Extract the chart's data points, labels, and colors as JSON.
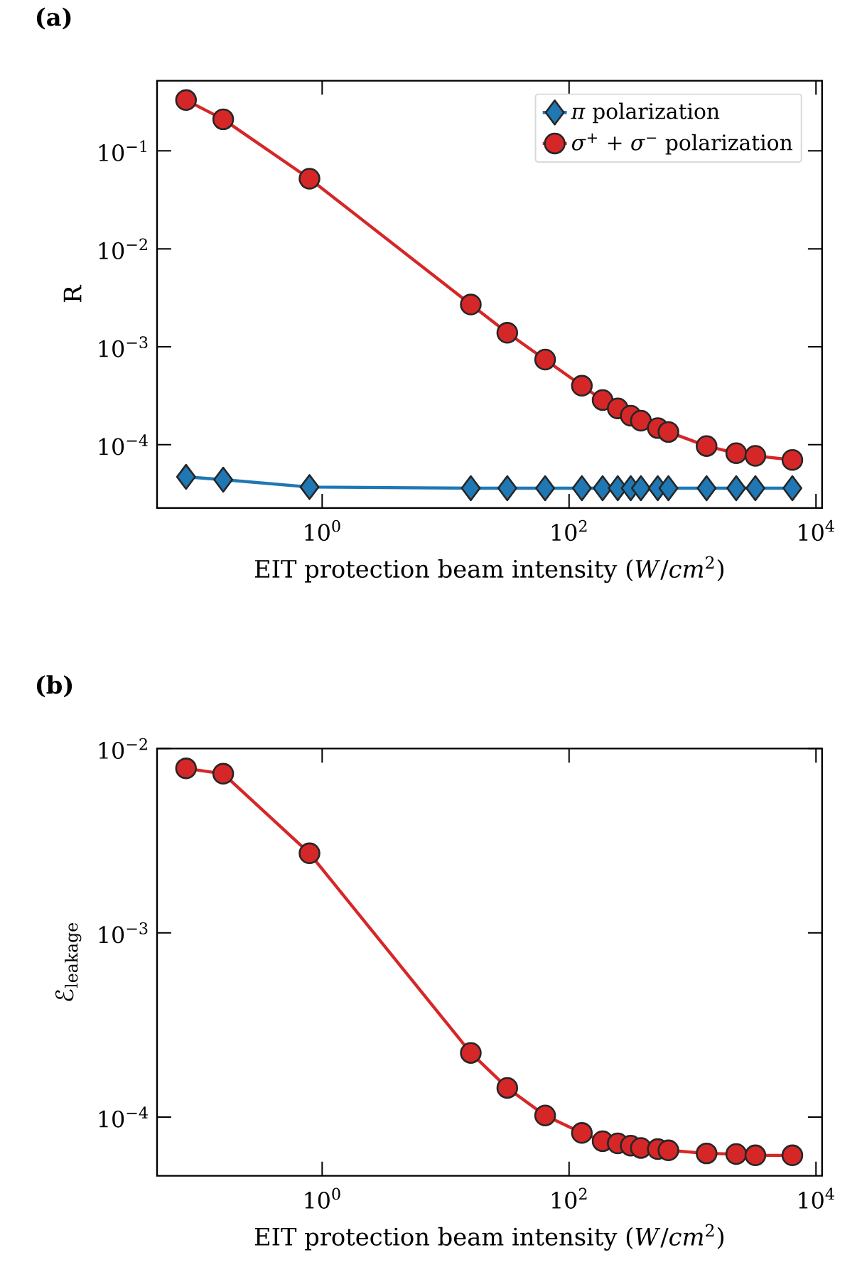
{
  "chart_data": [
    {
      "type": "line",
      "title": "(a)",
      "xlabel": "EIT protection beam intensity (*W*/*cm*$^{2}$)",
      "ylabel": "R",
      "log": "xy",
      "legend": "top right",
      "xlim": [
        0.046,
        11200
      ],
      "ylim": [
        2.26e-05,
        0.52
      ],
      "xticks": [
        {
          "value": 1,
          "label": "10$^{0}$"
        },
        {
          "value": 100,
          "label": "10$^{2}$"
        },
        {
          "value": 10000,
          "label": "10$^{4}$"
        }
      ],
      "yticks": [
        {
          "value": 0.0001,
          "label": "10$^{−4}$"
        },
        {
          "value": 0.001,
          "label": "10$^{−3}$"
        },
        {
          "value": 0.01,
          "label": "10$^{−2}$"
        },
        {
          "value": 0.1,
          "label": "10$^{−1}$"
        }
      ],
      "x": [
        0.079,
        0.158,
        0.79,
        16,
        31.6,
        64,
        127,
        187,
        248,
        316,
        382,
        523,
        638,
        1300,
        2260,
        3230,
        6440
      ],
      "series": [
        {
          "name": "*π* polarization",
          "color": "#1f77b4",
          "marker": "diamond",
          "values": [
            4.7e-05,
            4.4e-05,
            3.7e-05,
            3.6e-05,
            3.6e-05,
            3.6e-05,
            3.6e-05,
            3.6e-05,
            3.6e-05,
            3.6e-05,
            3.6e-05,
            3.6e-05,
            3.6e-05,
            3.6e-05,
            3.6e-05,
            3.6e-05,
            3.6e-05
          ]
        },
        {
          "name": "*σ*$^{+}$ + *σ*$^{−}$ polarization",
          "color": "#d62728",
          "marker": "circle",
          "values": [
            0.33,
            0.21,
            0.052,
            0.0027,
            0.00139,
            0.00074,
            0.0004,
            0.000286,
            0.000235,
            0.000198,
            0.000176,
            0.000148,
            0.000135,
            9.7e-05,
            8.2e-05,
            7.7e-05,
            7e-05
          ]
        }
      ]
    },
    {
      "type": "line",
      "title": "(b)",
      "xlabel": "EIT protection beam intensity (*W*/*cm*$^{2}$)",
      "ylabel": "ℰ$_{leakage}$",
      "log": "xy",
      "xlim": [
        0.046,
        11200
      ],
      "ylim": [
        4.8e-05,
        0.01
      ],
      "xticks": [
        {
          "value": 1,
          "label": "10$^{0}$"
        },
        {
          "value": 100,
          "label": "10$^{2}$"
        },
        {
          "value": 10000,
          "label": "10$^{4}$"
        }
      ],
      "yticks": [
        {
          "value": 0.0001,
          "label": "10$^{−4}$"
        },
        {
          "value": 0.001,
          "label": "10$^{−3}$"
        },
        {
          "value": 0.01,
          "label": "10$^{−2}$"
        }
      ],
      "x": [
        0.079,
        0.158,
        0.79,
        16,
        31.6,
        64,
        127,
        187,
        248,
        316,
        382,
        523,
        638,
        1300,
        2260,
        3230,
        6440
      ],
      "series": [
        {
          "color": "#d62728",
          "marker": "circle",
          "values": [
            0.0078,
            0.0073,
            0.0027,
            0.000223,
            0.000144,
            0.000102,
            8.2e-05,
            7.4e-05,
            7.2e-05,
            7e-05,
            6.8e-05,
            6.7e-05,
            6.6e-05,
            6.35e-05,
            6.3e-05,
            6.2e-05,
            6.2e-05
          ]
        }
      ]
    }
  ]
}
